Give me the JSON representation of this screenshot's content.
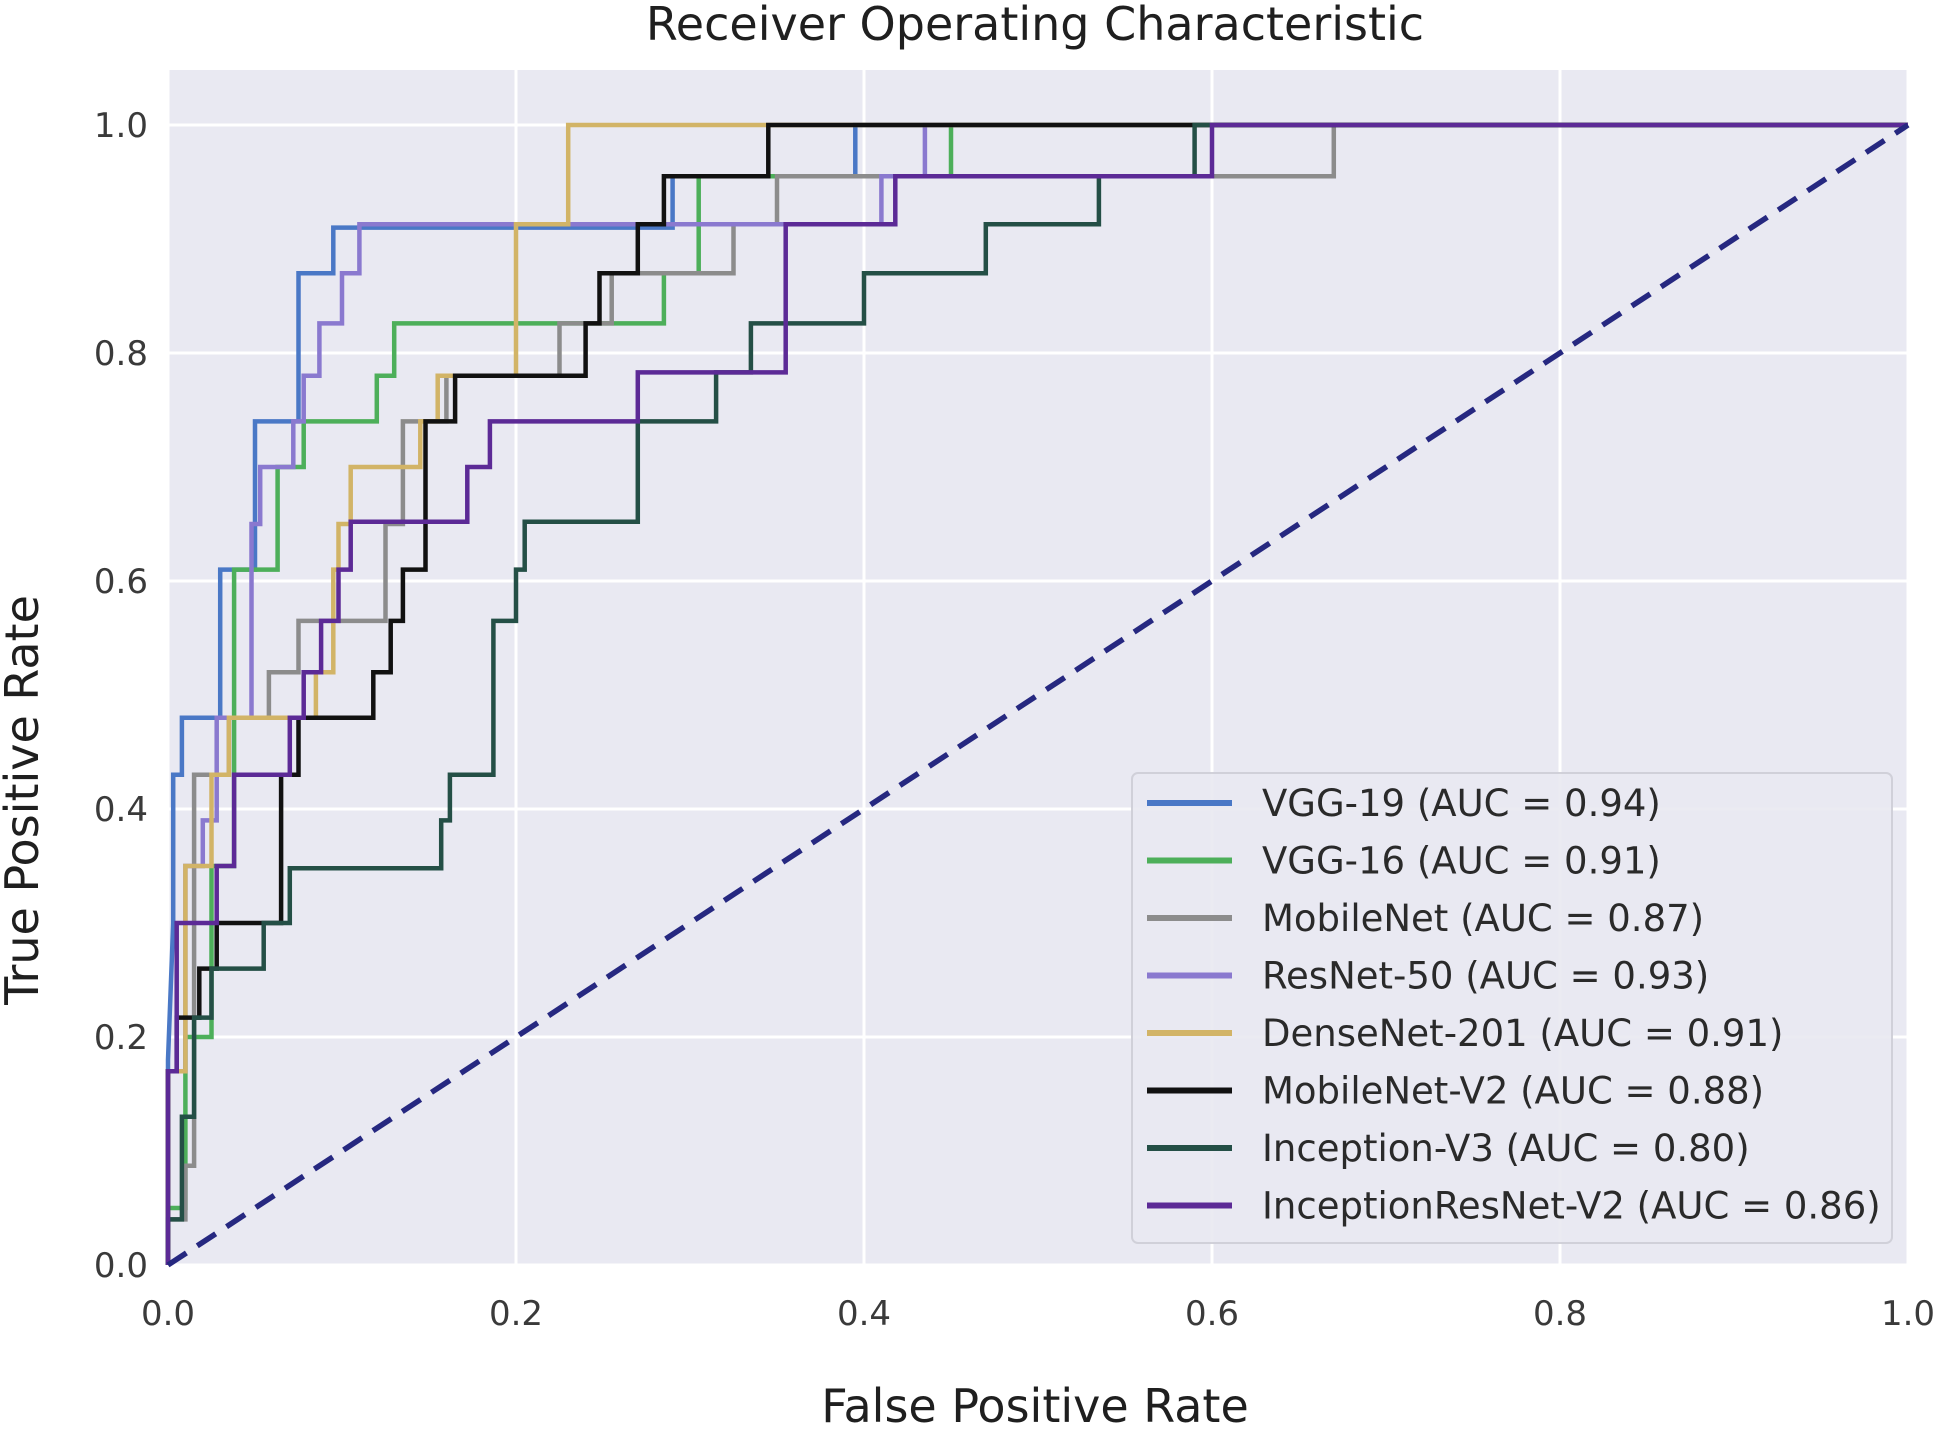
{
  "chart_data": {
    "type": "line",
    "title": "Receiver Operating Characteristic",
    "xlabel": "False Positive Rate",
    "ylabel": "True Positive Rate",
    "xlim": [
      0.0,
      1.0
    ],
    "ylim": [
      0.0,
      1.0
    ],
    "x_ticks": [
      "0.0",
      "0.2",
      "0.4",
      "0.6",
      "0.8",
      "1.0"
    ],
    "y_ticks": [
      "0.0",
      "0.2",
      "0.4",
      "0.6",
      "0.8",
      "1.0"
    ],
    "grid": true,
    "legend_position": "lower-right",
    "background_color": "#e9e9f2",
    "series": [
      {
        "name": "VGG-19",
        "legend_label": "VGG-19 (AUC = 0.94)",
        "auc": 0.94,
        "color": "#4a78c6",
        "points": [
          [
            0,
            0
          ],
          [
            0,
            0.08
          ],
          [
            0,
            0.18
          ],
          [
            0.003,
            0.3
          ],
          [
            0.003,
            0.43
          ],
          [
            0.008,
            0.43
          ],
          [
            0.008,
            0.48
          ],
          [
            0.03,
            0.48
          ],
          [
            0.03,
            0.61
          ],
          [
            0.05,
            0.61
          ],
          [
            0.05,
            0.74
          ],
          [
            0.075,
            0.74
          ],
          [
            0.075,
            0.87
          ],
          [
            0.095,
            0.87
          ],
          [
            0.095,
            0.91
          ],
          [
            0.29,
            0.91
          ],
          [
            0.29,
            0.955
          ],
          [
            0.395,
            0.955
          ],
          [
            0.395,
            1.0
          ],
          [
            1.0,
            1.0
          ]
        ]
      },
      {
        "name": "VGG-16",
        "legend_label": "VGG-16 (AUC = 0.91)",
        "auc": 0.91,
        "color": "#4daf5a",
        "points": [
          [
            0,
            0
          ],
          [
            0,
            0.05
          ],
          [
            0.01,
            0.05
          ],
          [
            0.01,
            0.2
          ],
          [
            0.025,
            0.2
          ],
          [
            0.025,
            0.35
          ],
          [
            0.038,
            0.35
          ],
          [
            0.038,
            0.61
          ],
          [
            0.063,
            0.61
          ],
          [
            0.063,
            0.7
          ],
          [
            0.078,
            0.7
          ],
          [
            0.078,
            0.74
          ],
          [
            0.12,
            0.74
          ],
          [
            0.12,
            0.78
          ],
          [
            0.13,
            0.78
          ],
          [
            0.13,
            0.826
          ],
          [
            0.285,
            0.826
          ],
          [
            0.285,
            0.87
          ],
          [
            0.305,
            0.87
          ],
          [
            0.305,
            0.955
          ],
          [
            0.45,
            0.955
          ],
          [
            0.45,
            1.0
          ],
          [
            1.0,
            1.0
          ]
        ]
      },
      {
        "name": "MobileNet",
        "legend_label": "MobileNet (AUC = 0.87)",
        "auc": 0.87,
        "color": "#8c8c8c",
        "points": [
          [
            0,
            0
          ],
          [
            0,
            0.04
          ],
          [
            0.01,
            0.04
          ],
          [
            0.01,
            0.087
          ],
          [
            0.015,
            0.087
          ],
          [
            0.015,
            0.43
          ],
          [
            0.035,
            0.43
          ],
          [
            0.035,
            0.48
          ],
          [
            0.058,
            0.48
          ],
          [
            0.058,
            0.52
          ],
          [
            0.075,
            0.52
          ],
          [
            0.075,
            0.565
          ],
          [
            0.125,
            0.565
          ],
          [
            0.125,
            0.65
          ],
          [
            0.135,
            0.65
          ],
          [
            0.135,
            0.74
          ],
          [
            0.16,
            0.74
          ],
          [
            0.16,
            0.78
          ],
          [
            0.225,
            0.78
          ],
          [
            0.225,
            0.826
          ],
          [
            0.255,
            0.826
          ],
          [
            0.255,
            0.87
          ],
          [
            0.325,
            0.87
          ],
          [
            0.325,
            0.913
          ],
          [
            0.35,
            0.913
          ],
          [
            0.35,
            0.955
          ],
          [
            0.67,
            0.955
          ],
          [
            0.67,
            1.0
          ],
          [
            1.0,
            1.0
          ]
        ]
      },
      {
        "name": "ResNet-50",
        "legend_label": "ResNet-50 (AUC = 0.93)",
        "auc": 0.93,
        "color": "#8a79cf",
        "points": [
          [
            0,
            0
          ],
          [
            0,
            0.17
          ],
          [
            0.01,
            0.17
          ],
          [
            0.01,
            0.35
          ],
          [
            0.02,
            0.35
          ],
          [
            0.02,
            0.39
          ],
          [
            0.028,
            0.39
          ],
          [
            0.028,
            0.48
          ],
          [
            0.048,
            0.48
          ],
          [
            0.048,
            0.65
          ],
          [
            0.053,
            0.65
          ],
          [
            0.053,
            0.7
          ],
          [
            0.072,
            0.7
          ],
          [
            0.072,
            0.74
          ],
          [
            0.078,
            0.74
          ],
          [
            0.078,
            0.78
          ],
          [
            0.087,
            0.78
          ],
          [
            0.087,
            0.826
          ],
          [
            0.1,
            0.826
          ],
          [
            0.1,
            0.87
          ],
          [
            0.11,
            0.87
          ],
          [
            0.11,
            0.913
          ],
          [
            0.41,
            0.913
          ],
          [
            0.41,
            0.955
          ],
          [
            0.435,
            0.955
          ],
          [
            0.435,
            1.0
          ],
          [
            1.0,
            1.0
          ]
        ]
      },
      {
        "name": "DenseNet-201",
        "legend_label": "DenseNet-201 (AUC = 0.91)",
        "auc": 0.91,
        "color": "#d2b467",
        "points": [
          [
            0,
            0
          ],
          [
            0,
            0.17
          ],
          [
            0.01,
            0.17
          ],
          [
            0.01,
            0.35
          ],
          [
            0.025,
            0.35
          ],
          [
            0.025,
            0.43
          ],
          [
            0.035,
            0.43
          ],
          [
            0.035,
            0.48
          ],
          [
            0.085,
            0.48
          ],
          [
            0.085,
            0.52
          ],
          [
            0.095,
            0.52
          ],
          [
            0.095,
            0.61
          ],
          [
            0.098,
            0.61
          ],
          [
            0.098,
            0.65
          ],
          [
            0.105,
            0.65
          ],
          [
            0.105,
            0.7
          ],
          [
            0.145,
            0.7
          ],
          [
            0.145,
            0.74
          ],
          [
            0.155,
            0.74
          ],
          [
            0.155,
            0.78
          ],
          [
            0.2,
            0.78
          ],
          [
            0.2,
            0.913
          ],
          [
            0.23,
            0.913
          ],
          [
            0.23,
            1.0
          ],
          [
            1.0,
            1.0
          ]
        ]
      },
      {
        "name": "MobileNet-V2",
        "legend_label": "MobileNet-V2 (AUC = 0.88)",
        "auc": 0.88,
        "color": "#111111",
        "points": [
          [
            0,
            0
          ],
          [
            0,
            0.17
          ],
          [
            0.005,
            0.17
          ],
          [
            0.005,
            0.217
          ],
          [
            0.018,
            0.217
          ],
          [
            0.018,
            0.26
          ],
          [
            0.028,
            0.26
          ],
          [
            0.028,
            0.3
          ],
          [
            0.065,
            0.3
          ],
          [
            0.065,
            0.43
          ],
          [
            0.075,
            0.43
          ],
          [
            0.075,
            0.48
          ],
          [
            0.118,
            0.48
          ],
          [
            0.118,
            0.52
          ],
          [
            0.128,
            0.52
          ],
          [
            0.128,
            0.565
          ],
          [
            0.135,
            0.565
          ],
          [
            0.135,
            0.61
          ],
          [
            0.148,
            0.61
          ],
          [
            0.148,
            0.74
          ],
          [
            0.165,
            0.74
          ],
          [
            0.165,
            0.78
          ],
          [
            0.24,
            0.78
          ],
          [
            0.24,
            0.826
          ],
          [
            0.248,
            0.826
          ],
          [
            0.248,
            0.87
          ],
          [
            0.27,
            0.87
          ],
          [
            0.27,
            0.913
          ],
          [
            0.285,
            0.913
          ],
          [
            0.285,
            0.955
          ],
          [
            0.345,
            0.955
          ],
          [
            0.345,
            1.0
          ],
          [
            1.0,
            1.0
          ]
        ]
      },
      {
        "name": "Inception-V3",
        "legend_label": "Inception-V3 (AUC = 0.80)",
        "auc": 0.8,
        "color": "#244f46",
        "points": [
          [
            0,
            0
          ],
          [
            0,
            0.04
          ],
          [
            0.008,
            0.04
          ],
          [
            0.008,
            0.13
          ],
          [
            0.015,
            0.13
          ],
          [
            0.015,
            0.217
          ],
          [
            0.025,
            0.217
          ],
          [
            0.025,
            0.26
          ],
          [
            0.055,
            0.26
          ],
          [
            0.055,
            0.3
          ],
          [
            0.07,
            0.3
          ],
          [
            0.07,
            0.348
          ],
          [
            0.157,
            0.348
          ],
          [
            0.157,
            0.39
          ],
          [
            0.162,
            0.39
          ],
          [
            0.162,
            0.43
          ],
          [
            0.187,
            0.43
          ],
          [
            0.187,
            0.565
          ],
          [
            0.2,
            0.565
          ],
          [
            0.2,
            0.61
          ],
          [
            0.205,
            0.61
          ],
          [
            0.205,
            0.652
          ],
          [
            0.27,
            0.652
          ],
          [
            0.27,
            0.74
          ],
          [
            0.315,
            0.74
          ],
          [
            0.315,
            0.783
          ],
          [
            0.335,
            0.783
          ],
          [
            0.335,
            0.826
          ],
          [
            0.4,
            0.826
          ],
          [
            0.4,
            0.87
          ],
          [
            0.47,
            0.87
          ],
          [
            0.47,
            0.913
          ],
          [
            0.535,
            0.913
          ],
          [
            0.535,
            0.955
          ],
          [
            0.59,
            0.955
          ],
          [
            0.59,
            1.0
          ],
          [
            1.0,
            1.0
          ]
        ]
      },
      {
        "name": "InceptionResNet-V2",
        "legend_label": "InceptionResNet-V2 (AUC = 0.86)",
        "auc": 0.86,
        "color": "#5c2a96",
        "points": [
          [
            0,
            0
          ],
          [
            0,
            0.17
          ],
          [
            0.005,
            0.17
          ],
          [
            0.005,
            0.3
          ],
          [
            0.028,
            0.3
          ],
          [
            0.028,
            0.35
          ],
          [
            0.038,
            0.35
          ],
          [
            0.038,
            0.43
          ],
          [
            0.07,
            0.43
          ],
          [
            0.07,
            0.48
          ],
          [
            0.078,
            0.48
          ],
          [
            0.078,
            0.52
          ],
          [
            0.088,
            0.52
          ],
          [
            0.088,
            0.565
          ],
          [
            0.098,
            0.565
          ],
          [
            0.098,
            0.61
          ],
          [
            0.105,
            0.61
          ],
          [
            0.105,
            0.652
          ],
          [
            0.172,
            0.652
          ],
          [
            0.172,
            0.7
          ],
          [
            0.185,
            0.7
          ],
          [
            0.185,
            0.74
          ],
          [
            0.27,
            0.74
          ],
          [
            0.27,
            0.783
          ],
          [
            0.355,
            0.783
          ],
          [
            0.355,
            0.913
          ],
          [
            0.418,
            0.913
          ],
          [
            0.418,
            0.955
          ],
          [
            0.6,
            0.955
          ],
          [
            0.6,
            1.0
          ],
          [
            1.0,
            1.0
          ]
        ]
      }
    ],
    "reference_line": {
      "name": "chance",
      "points": [
        [
          0,
          0
        ],
        [
          1,
          1
        ]
      ],
      "color": "#262880",
      "style": "dashed"
    }
  }
}
